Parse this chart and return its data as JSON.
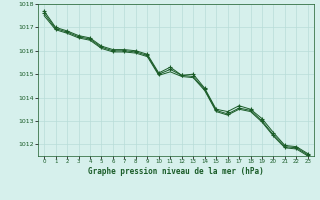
{
  "title": "Graphe pression niveau de la mer (hPa)",
  "background_color": "#d6f0ec",
  "grid_color": "#b8ddd8",
  "line_color": "#1a5c28",
  "x_values": [
    0,
    1,
    2,
    3,
    4,
    5,
    6,
    7,
    8,
    9,
    10,
    11,
    12,
    13,
    14,
    15,
    16,
    17,
    18,
    19,
    20,
    21,
    22,
    23
  ],
  "series1": [
    1017.7,
    1017.0,
    1016.85,
    1016.65,
    1016.55,
    1016.2,
    1016.05,
    1016.05,
    1016.0,
    1015.85,
    1015.05,
    1015.3,
    1014.95,
    1015.0,
    1014.4,
    1013.5,
    1013.4,
    1013.65,
    1013.5,
    1013.1,
    1012.5,
    1011.95,
    1011.9,
    1011.6
  ],
  "series2": [
    1017.6,
    1016.95,
    1016.8,
    1016.6,
    1016.5,
    1016.15,
    1016.0,
    1016.0,
    1015.95,
    1015.8,
    1015.0,
    1015.2,
    1014.95,
    1014.9,
    1014.35,
    1013.45,
    1013.3,
    1013.55,
    1013.45,
    1013.0,
    1012.4,
    1011.9,
    1011.85,
    1011.55
  ],
  "series3": [
    1017.5,
    1016.9,
    1016.75,
    1016.55,
    1016.45,
    1016.1,
    1015.95,
    1015.95,
    1015.9,
    1015.75,
    1014.95,
    1015.1,
    1014.9,
    1014.85,
    1014.3,
    1013.4,
    1013.25,
    1013.5,
    1013.4,
    1012.95,
    1012.35,
    1011.85,
    1011.8,
    1011.5
  ],
  "ylim_min": 1011.5,
  "ylim_max": 1018.0,
  "yticks": [
    1012,
    1013,
    1014,
    1015,
    1016,
    1017,
    1018
  ],
  "xlim_min": -0.5,
  "xlim_max": 23.5
}
